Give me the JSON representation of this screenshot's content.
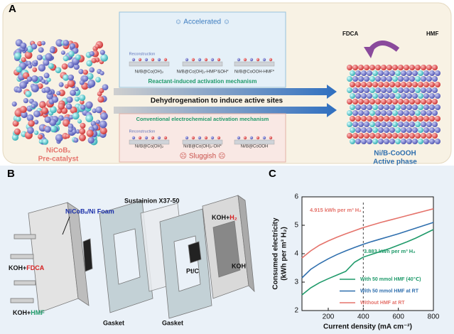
{
  "panel_a": {
    "label": "A",
    "precatalyst": {
      "name": "NiCoBₓ",
      "caption": "Pre-catalyst"
    },
    "accelerated": {
      "heading": "☺ Accelerated ☺",
      "reconstruction": "Reconstruction",
      "states": [
        "Ni/B@Co(OH)₂",
        "Ni/B@Co(OH)₂-HMF*&OH*",
        "Ni/B@CoOOH-HMF*"
      ],
      "mechanism": "Reactant-induced activation mechanism"
    },
    "arrow_text": "Dehydrogenation to induce active sites",
    "conventional": {
      "mechanism": "Conventional electrochemical activation mechanism",
      "reconstruction": "Reconstruction",
      "states": [
        "Ni/B@Co(OH)₂",
        "Ni/B@Co(OH)₂-OH*",
        "Ni/B@CoOOH"
      ],
      "heading": "☹ Sluggish ☹"
    },
    "product": {
      "fdca": "FDCA",
      "hmf": "HMF",
      "name": "Ni/B-CoOOH",
      "caption": "Active phase"
    }
  },
  "panel_b": {
    "label": "B",
    "anode": "NiCoBₓ/Ni Foam",
    "membrane": "Sustainion X37-50",
    "feed_fdca": {
      "prefix": "KOH+",
      "species": "FDCA"
    },
    "feed_hmf": {
      "prefix": "KOH+",
      "species": "HMF"
    },
    "gasket_1": "Gasket",
    "gasket_2": "Gasket",
    "cathode": "Pt/C",
    "feed_h2": {
      "prefix": "KOH+",
      "species": "H₂"
    },
    "koh": "KOH"
  },
  "chart_data": {
    "type": "line",
    "panel_label": "C",
    "x_label": "Current density (mA cm⁻²)",
    "y_label": [
      "Consumed electricity",
      "(kWh per m³ H₂)"
    ],
    "x": [
      50,
      100,
      150,
      200,
      250,
      300,
      350,
      400,
      450,
      500,
      550,
      600,
      650,
      700,
      750,
      800
    ],
    "series": [
      {
        "name": "With 50 mmol HMF (40℃)",
        "color": "#1f9a6a",
        "values": [
          2.55,
          2.8,
          2.98,
          3.12,
          3.25,
          3.38,
          3.7,
          3.88,
          3.98,
          4.08,
          4.18,
          4.3,
          4.42,
          4.55,
          4.7,
          4.85
        ]
      },
      {
        "name": "With 50 mmol HMF at RT",
        "color": "#2f6fae",
        "values": [
          3.15,
          3.45,
          3.65,
          3.82,
          3.97,
          4.1,
          4.22,
          4.33,
          4.43,
          4.52,
          4.61,
          4.7,
          4.8,
          4.9,
          5.0,
          5.1
        ]
      },
      {
        "name": "Without HMF at RT",
        "color": "#e5736b",
        "values": [
          3.85,
          4.1,
          4.3,
          4.45,
          4.58,
          4.7,
          4.81,
          4.92,
          5.01,
          5.1,
          5.18,
          5.26,
          5.34,
          5.42,
          5.5,
          5.58
        ]
      }
    ],
    "annotations": [
      {
        "text": "4.915 kWh per m³ H₂",
        "color": "#e5736b"
      },
      {
        "text": "3.883 kWh per m³ H₂",
        "color": "#1f9a6a"
      }
    ],
    "vline": 400,
    "xlim": [
      50,
      800
    ],
    "ylim": [
      2,
      6
    ],
    "xticks": [
      200,
      400,
      600,
      800
    ],
    "yticks": [
      2,
      3,
      4,
      5,
      6
    ]
  }
}
